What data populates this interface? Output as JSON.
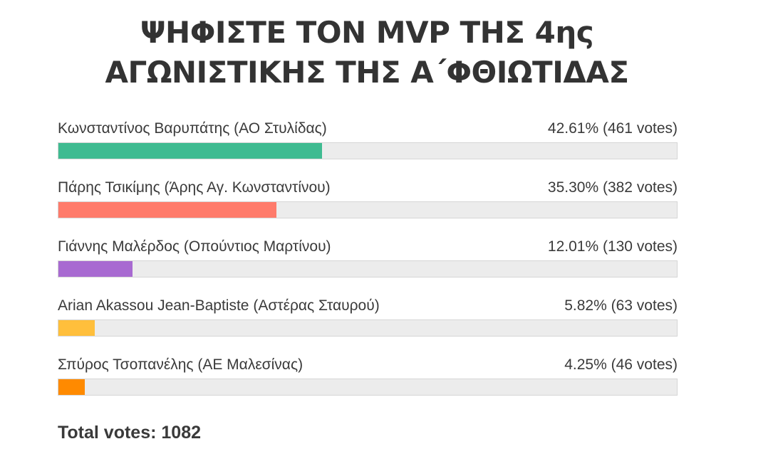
{
  "poll": {
    "title_line1": "ΨΗΦΙΣΤΕ ΤΟΝ MVP ΤΗΣ 4ης",
    "title_line2": "ΑΓΩΝΙΣΤΙΚΗΣ ΤΗΣ Α΄ΦΘΙΩΤΙΔΑΣ",
    "options": [
      {
        "label": "Κωνσταντίνος Βαρυπάτης (ΑΟ Στυλίδας)",
        "result": "42.61% (461 votes)",
        "percent": 42.61,
        "color": "#3fbb91"
      },
      {
        "label": "Πάρης Τσικίμης (Άρης Αγ. Κωνσταντίνου)",
        "result": "35.30% (382 votes)",
        "percent": 35.3,
        "color": "#ff7b6b"
      },
      {
        "label": "Γιάννης Μαλέρδος (Οπούντιος Μαρτίνου)",
        "result": "12.01% (130 votes)",
        "percent": 12.01,
        "color": "#a86ad1"
      },
      {
        "label": "Arian Akassou Jean-Baptiste (Αστέρας Σταυρού)",
        "result": "5.82% (63 votes)",
        "percent": 5.82,
        "color": "#ffbf3c"
      },
      {
        "label": "Σπύρος Τσοπανέλης (ΑΕ Μαλεσίνας)",
        "result": "4.25% (46 votes)",
        "percent": 4.25,
        "color": "#ff8a00"
      }
    ],
    "total_label": "Total votes: 1082"
  }
}
